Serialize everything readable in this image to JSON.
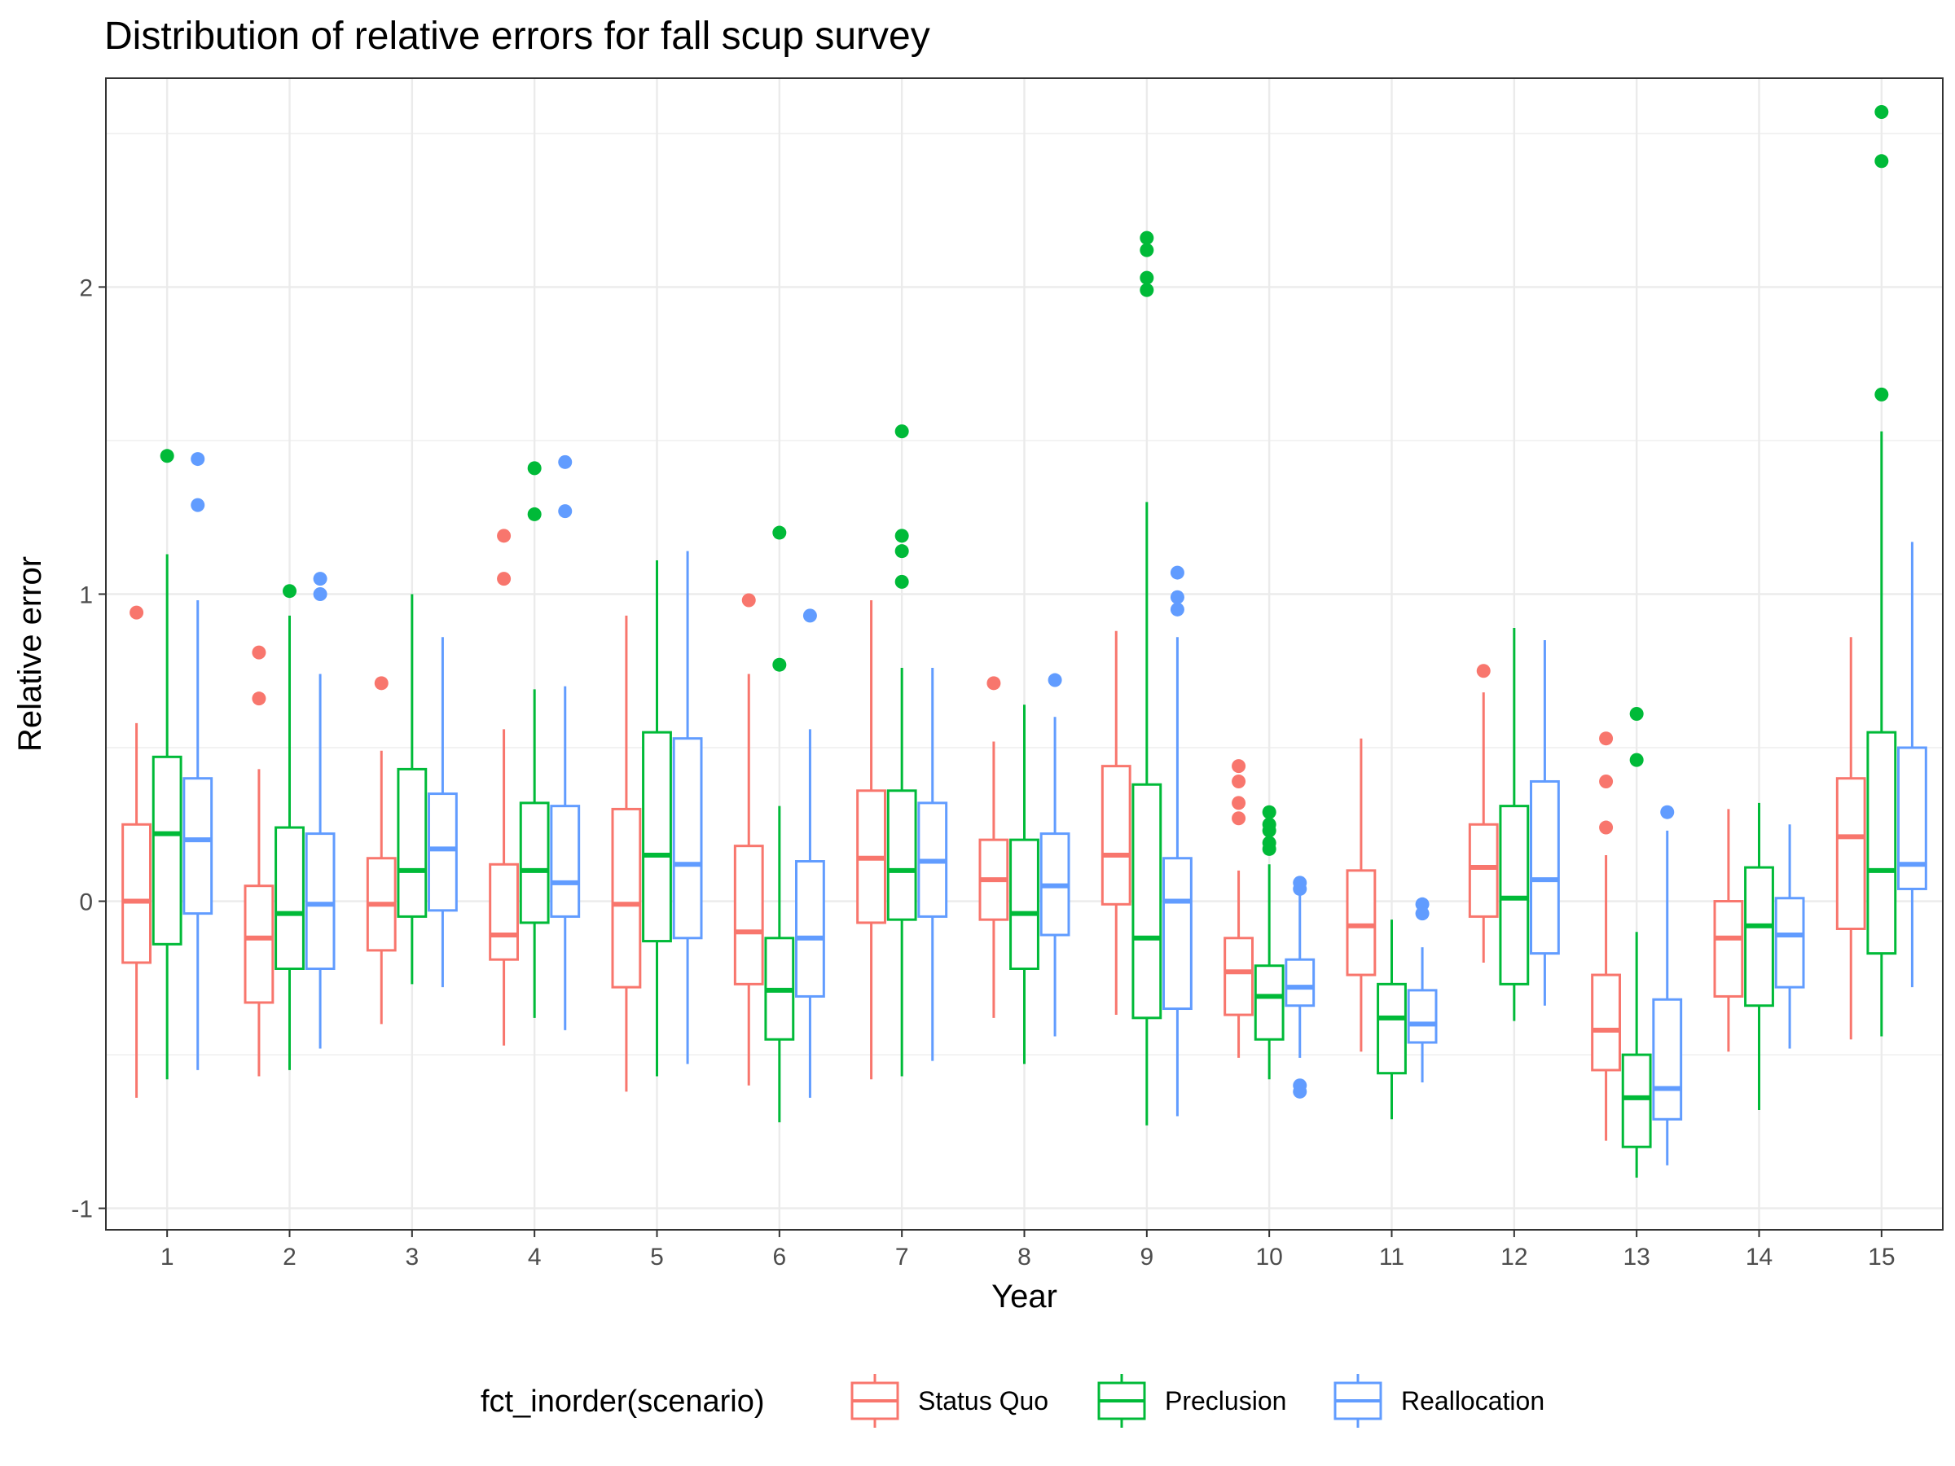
{
  "chart_data": {
    "type": "boxplot",
    "title": "Distribution of relative errors for fall scup survey",
    "xlabel": "Year",
    "ylabel": "Relative error",
    "ylim": [
      -1.07,
      2.68
    ],
    "yticks": [
      -1,
      0,
      1,
      2
    ],
    "grid": true,
    "legend": {
      "title": "fct_inorder(scenario)",
      "position": "bottom"
    },
    "categories": [
      "1",
      "2",
      "3",
      "4",
      "5",
      "6",
      "7",
      "8",
      "9",
      "10",
      "11",
      "12",
      "13",
      "14",
      "15"
    ],
    "series": [
      {
        "name": "Status Quo",
        "color": "#F8766D",
        "boxes": [
          {
            "lower_whisker": -0.64,
            "q1": -0.2,
            "median": 0.0,
            "q3": 0.25,
            "upper_whisker": 0.58,
            "outliers": [
              0.94
            ]
          },
          {
            "lower_whisker": -0.57,
            "q1": -0.33,
            "median": -0.12,
            "q3": 0.05,
            "upper_whisker": 0.43,
            "outliers": [
              0.81,
              0.66
            ]
          },
          {
            "lower_whisker": -0.4,
            "q1": -0.16,
            "median": -0.01,
            "q3": 0.14,
            "upper_whisker": 0.49,
            "outliers": [
              0.71
            ]
          },
          {
            "lower_whisker": -0.47,
            "q1": -0.19,
            "median": -0.11,
            "q3": 0.12,
            "upper_whisker": 0.56,
            "outliers": [
              1.19,
              1.05
            ]
          },
          {
            "lower_whisker": -0.62,
            "q1": -0.28,
            "median": -0.01,
            "q3": 0.3,
            "upper_whisker": 0.93,
            "outliers": []
          },
          {
            "lower_whisker": -0.6,
            "q1": -0.27,
            "median": -0.1,
            "q3": 0.18,
            "upper_whisker": 0.74,
            "outliers": [
              0.98
            ]
          },
          {
            "lower_whisker": -0.58,
            "q1": -0.07,
            "median": 0.14,
            "q3": 0.36,
            "upper_whisker": 0.98,
            "outliers": []
          },
          {
            "lower_whisker": -0.38,
            "q1": -0.06,
            "median": 0.07,
            "q3": 0.2,
            "upper_whisker": 0.52,
            "outliers": [
              0.71
            ]
          },
          {
            "lower_whisker": -0.37,
            "q1": -0.01,
            "median": 0.15,
            "q3": 0.44,
            "upper_whisker": 0.88,
            "outliers": []
          },
          {
            "lower_whisker": -0.51,
            "q1": -0.37,
            "median": -0.23,
            "q3": -0.12,
            "upper_whisker": 0.1,
            "outliers": [
              0.44,
              0.39,
              0.32,
              0.27
            ]
          },
          {
            "lower_whisker": -0.49,
            "q1": -0.24,
            "median": -0.08,
            "q3": 0.1,
            "upper_whisker": 0.53,
            "outliers": []
          },
          {
            "lower_whisker": -0.2,
            "q1": -0.05,
            "median": 0.11,
            "q3": 0.25,
            "upper_whisker": 0.68,
            "outliers": [
              0.75
            ]
          },
          {
            "lower_whisker": -0.78,
            "q1": -0.55,
            "median": -0.42,
            "q3": -0.24,
            "upper_whisker": 0.15,
            "outliers": [
              0.53,
              0.39,
              0.24
            ]
          },
          {
            "lower_whisker": -0.49,
            "q1": -0.31,
            "median": -0.12,
            "q3": 0.0,
            "upper_whisker": 0.3,
            "outliers": []
          },
          {
            "lower_whisker": -0.45,
            "q1": -0.09,
            "median": 0.21,
            "q3": 0.4,
            "upper_whisker": 0.86,
            "outliers": []
          }
        ]
      },
      {
        "name": "Preclusion",
        "color": "#00BA38",
        "boxes": [
          {
            "lower_whisker": -0.58,
            "q1": -0.14,
            "median": 0.22,
            "q3": 0.47,
            "upper_whisker": 1.13,
            "outliers": [
              1.45
            ]
          },
          {
            "lower_whisker": -0.55,
            "q1": -0.22,
            "median": -0.04,
            "q3": 0.24,
            "upper_whisker": 0.93,
            "outliers": [
              1.01
            ]
          },
          {
            "lower_whisker": -0.27,
            "q1": -0.05,
            "median": 0.1,
            "q3": 0.43,
            "upper_whisker": 1.0,
            "outliers": []
          },
          {
            "lower_whisker": -0.38,
            "q1": -0.07,
            "median": 0.1,
            "q3": 0.32,
            "upper_whisker": 0.69,
            "outliers": [
              1.41,
              1.26
            ]
          },
          {
            "lower_whisker": -0.57,
            "q1": -0.13,
            "median": 0.15,
            "q3": 0.55,
            "upper_whisker": 1.11,
            "outliers": []
          },
          {
            "lower_whisker": -0.72,
            "q1": -0.45,
            "median": -0.29,
            "q3": -0.12,
            "upper_whisker": 0.31,
            "outliers": [
              1.2,
              0.77
            ]
          },
          {
            "lower_whisker": -0.57,
            "q1": -0.06,
            "median": 0.1,
            "q3": 0.36,
            "upper_whisker": 0.76,
            "outliers": [
              1.53,
              1.19,
              1.14,
              1.04
            ]
          },
          {
            "lower_whisker": -0.53,
            "q1": -0.22,
            "median": -0.04,
            "q3": 0.2,
            "upper_whisker": 0.64,
            "outliers": []
          },
          {
            "lower_whisker": -0.73,
            "q1": -0.38,
            "median": -0.12,
            "q3": 0.38,
            "upper_whisker": 1.3,
            "outliers": [
              2.16,
              2.12,
              2.03,
              1.99
            ]
          },
          {
            "lower_whisker": -0.58,
            "q1": -0.45,
            "median": -0.31,
            "q3": -0.21,
            "upper_whisker": 0.12,
            "outliers": [
              0.29,
              0.25,
              0.23,
              0.19,
              0.17
            ]
          },
          {
            "lower_whisker": -0.71,
            "q1": -0.56,
            "median": -0.38,
            "q3": -0.27,
            "upper_whisker": -0.06,
            "outliers": []
          },
          {
            "lower_whisker": -0.39,
            "q1": -0.27,
            "median": 0.01,
            "q3": 0.31,
            "upper_whisker": 0.89,
            "outliers": []
          },
          {
            "lower_whisker": -0.9,
            "q1": -0.8,
            "median": -0.64,
            "q3": -0.5,
            "upper_whisker": -0.1,
            "outliers": [
              0.61,
              0.46
            ]
          },
          {
            "lower_whisker": -0.68,
            "q1": -0.34,
            "median": -0.08,
            "q3": 0.11,
            "upper_whisker": 0.32,
            "outliers": []
          },
          {
            "lower_whisker": -0.44,
            "q1": -0.17,
            "median": 0.1,
            "q3": 0.55,
            "upper_whisker": 1.53,
            "outliers": [
              2.57,
              2.41,
              1.65
            ]
          }
        ]
      },
      {
        "name": "Reallocation",
        "color": "#619CFF",
        "boxes": [
          {
            "lower_whisker": -0.55,
            "q1": -0.04,
            "median": 0.2,
            "q3": 0.4,
            "upper_whisker": 0.98,
            "outliers": [
              1.44,
              1.29
            ]
          },
          {
            "lower_whisker": -0.48,
            "q1": -0.22,
            "median": -0.01,
            "q3": 0.22,
            "upper_whisker": 0.74,
            "outliers": [
              1.05,
              1.0
            ]
          },
          {
            "lower_whisker": -0.28,
            "q1": -0.03,
            "median": 0.17,
            "q3": 0.35,
            "upper_whisker": 0.86,
            "outliers": []
          },
          {
            "lower_whisker": -0.42,
            "q1": -0.05,
            "median": 0.06,
            "q3": 0.31,
            "upper_whisker": 0.7,
            "outliers": [
              1.43,
              1.27
            ]
          },
          {
            "lower_whisker": -0.53,
            "q1": -0.12,
            "median": 0.12,
            "q3": 0.53,
            "upper_whisker": 1.14,
            "outliers": []
          },
          {
            "lower_whisker": -0.64,
            "q1": -0.31,
            "median": -0.12,
            "q3": 0.13,
            "upper_whisker": 0.56,
            "outliers": [
              0.93
            ]
          },
          {
            "lower_whisker": -0.52,
            "q1": -0.05,
            "median": 0.13,
            "q3": 0.32,
            "upper_whisker": 0.76,
            "outliers": []
          },
          {
            "lower_whisker": -0.44,
            "q1": -0.11,
            "median": 0.05,
            "q3": 0.22,
            "upper_whisker": 0.6,
            "outliers": [
              0.72
            ]
          },
          {
            "lower_whisker": -0.7,
            "q1": -0.35,
            "median": 0.0,
            "q3": 0.14,
            "upper_whisker": 0.86,
            "outliers": [
              1.07,
              0.99,
              0.95
            ]
          },
          {
            "lower_whisker": -0.51,
            "q1": -0.34,
            "median": -0.28,
            "q3": -0.19,
            "upper_whisker": 0.04,
            "outliers": [
              0.06,
              0.04,
              -0.6,
              -0.62
            ]
          },
          {
            "lower_whisker": -0.59,
            "q1": -0.46,
            "median": -0.4,
            "q3": -0.29,
            "upper_whisker": -0.15,
            "outliers": [
              -0.01,
              -0.04
            ]
          },
          {
            "lower_whisker": -0.34,
            "q1": -0.17,
            "median": 0.07,
            "q3": 0.39,
            "upper_whisker": 0.85,
            "outliers": []
          },
          {
            "lower_whisker": -0.86,
            "q1": -0.71,
            "median": -0.61,
            "q3": -0.32,
            "upper_whisker": 0.23,
            "outliers": [
              0.29
            ]
          },
          {
            "lower_whisker": -0.48,
            "q1": -0.28,
            "median": -0.11,
            "q3": 0.01,
            "upper_whisker": 0.25,
            "outliers": []
          },
          {
            "lower_whisker": -0.28,
            "q1": 0.04,
            "median": 0.12,
            "q3": 0.5,
            "upper_whisker": 1.17,
            "outliers": []
          }
        ]
      }
    ]
  }
}
